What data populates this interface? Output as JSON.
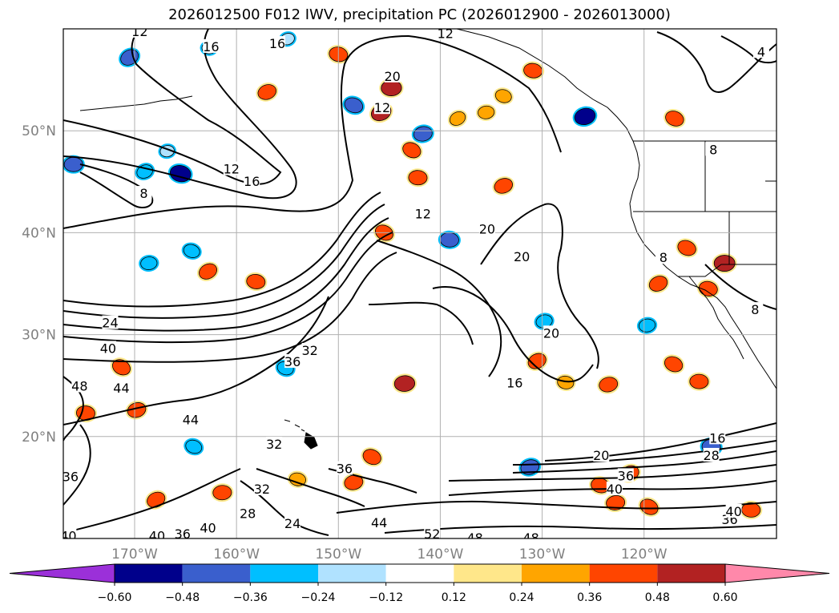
{
  "chart_data": {
    "type": "heatmap",
    "title": "2026012500 F012 IWV, precipitation PC (2026012900 - 2026013000)",
    "map": {
      "lon_range": [
        -177,
        -107
      ],
      "lat_range": [
        10,
        60
      ],
      "lon_ticks": [
        -170,
        -160,
        -150,
        -140,
        -130,
        -120
      ],
      "lon_tick_labels": [
        "170°W",
        "160°W",
        "150°W",
        "140°W",
        "130°W",
        "120°W"
      ],
      "lat_ticks": [
        20,
        30,
        40,
        50
      ],
      "lat_tick_labels": [
        "20°N",
        "30°N",
        "40°N",
        "50°N"
      ],
      "grid": true
    },
    "colorbar": {
      "orientation": "horizontal",
      "extend": "both",
      "boundaries": [
        -0.6,
        -0.48,
        -0.36,
        -0.24,
        -0.12,
        0.12,
        0.24,
        0.36,
        0.48,
        0.6
      ],
      "tick_labels": [
        "−0.60",
        "−0.48",
        "−0.36",
        "−0.24",
        "−0.12",
        "0.12",
        "0.24",
        "0.36",
        "0.48",
        "0.60"
      ],
      "colors": [
        "#9b30d9",
        "#00008b",
        "#3a5fcd",
        "#00bfff",
        "#b0e2ff",
        "#ffffff",
        "#ffe78a",
        "#ffa500",
        "#ff4500",
        "#b22222",
        "#ff88aa"
      ]
    },
    "contour_labels": [
      {
        "text": "12",
        "lon": -169.5,
        "lat": 59.7
      },
      {
        "text": "16",
        "lon": -162.5,
        "lat": 58.2
      },
      {
        "text": "16",
        "lon": -156,
        "lat": 58.5
      },
      {
        "text": "12",
        "lon": -139.5,
        "lat": 59.5
      },
      {
        "text": "20",
        "lon": -144.7,
        "lat": 55.3
      },
      {
        "text": "12",
        "lon": -145.7,
        "lat": 52.2
      },
      {
        "text": "12",
        "lon": -160.5,
        "lat": 46.2
      },
      {
        "text": "16",
        "lon": -158.5,
        "lat": 45
      },
      {
        "text": "8",
        "lon": -169.1,
        "lat": 43.8
      },
      {
        "text": "12",
        "lon": -141.7,
        "lat": 41.8
      },
      {
        "text": "20",
        "lon": -135.4,
        "lat": 40.3
      },
      {
        "text": "20",
        "lon": -132,
        "lat": 37.6
      },
      {
        "text": "24",
        "lon": -172.4,
        "lat": 31.1
      },
      {
        "text": "40",
        "lon": -172.6,
        "lat": 28.6
      },
      {
        "text": "36",
        "lon": -154.5,
        "lat": 27.3
      },
      {
        "text": "32",
        "lon": -152.8,
        "lat": 28.4
      },
      {
        "text": "20",
        "lon": -129.1,
        "lat": 30.1
      },
      {
        "text": "16",
        "lon": -132.7,
        "lat": 25.2
      },
      {
        "text": "48",
        "lon": -175.4,
        "lat": 24.9
      },
      {
        "text": "44",
        "lon": -171.3,
        "lat": 24.7
      },
      {
        "text": "44",
        "lon": -164.5,
        "lat": 21.6
      },
      {
        "text": "32",
        "lon": -156.3,
        "lat": 19.2
      },
      {
        "text": "16",
        "lon": -112.8,
        "lat": 19.8
      },
      {
        "text": "20",
        "lon": -124.2,
        "lat": 18.1
      },
      {
        "text": "28",
        "lon": -113.4,
        "lat": 18.1
      },
      {
        "text": "36",
        "lon": -176.3,
        "lat": 16
      },
      {
        "text": "36",
        "lon": -149.4,
        "lat": 16.8
      },
      {
        "text": "36",
        "lon": -121.8,
        "lat": 16.1
      },
      {
        "text": "40",
        "lon": -122.9,
        "lat": 14.8
      },
      {
        "text": "32",
        "lon": -157.5,
        "lat": 14.8
      },
      {
        "text": "28",
        "lon": -158.9,
        "lat": 12.4
      },
      {
        "text": "24",
        "lon": -154.5,
        "lat": 11.4
      },
      {
        "text": "40",
        "lon": -162.8,
        "lat": 11
      },
      {
        "text": "44",
        "lon": -146,
        "lat": 11.5
      },
      {
        "text": "52",
        "lon": -140.8,
        "lat": 10.4
      },
      {
        "text": "40",
        "lon": -167.8,
        "lat": 10.2
      },
      {
        "text": "36",
        "lon": -165.3,
        "lat": 10.4
      },
      {
        "text": "48",
        "lon": -131.1,
        "lat": 10
      },
      {
        "text": "48",
        "lon": -136.6,
        "lat": 10
      },
      {
        "text": "40",
        "lon": -176.5,
        "lat": 10.2
      },
      {
        "text": "36",
        "lon": -111.6,
        "lat": 11.8
      },
      {
        "text": "40",
        "lon": -111.2,
        "lat": 12.6
      },
      {
        "text": "8",
        "lon": -118.1,
        "lat": 37.5
      },
      {
        "text": "8",
        "lon": -109.1,
        "lat": 32.4
      },
      {
        "text": "4",
        "lon": -108.5,
        "lat": 57.7
      },
      {
        "text": "8",
        "lon": -113.2,
        "lat": 48.1
      }
    ],
    "pc_patches": [
      {
        "lon": -170.5,
        "lat": 57.2,
        "value": -0.4
      },
      {
        "lon": -162.7,
        "lat": 58.1,
        "value": -0.2
      },
      {
        "lon": -155,
        "lat": 59.0,
        "value": -0.2
      },
      {
        "lon": -148.5,
        "lat": 52.5,
        "value": -0.4
      },
      {
        "lon": -144.8,
        "lat": 54.2,
        "value": 0.48
      },
      {
        "lon": -145.8,
        "lat": 51.8,
        "value": 0.48
      },
      {
        "lon": -150,
        "lat": 57.5,
        "value": 0.4
      },
      {
        "lon": -141.7,
        "lat": 49.7,
        "value": -0.4
      },
      {
        "lon": -142.8,
        "lat": 48.1,
        "value": 0.4
      },
      {
        "lon": -142.2,
        "lat": 45.4,
        "value": 0.4
      },
      {
        "lon": -157,
        "lat": 53.8,
        "value": 0.4
      },
      {
        "lon": -133.8,
        "lat": 53.4,
        "value": 0.3
      },
      {
        "lon": -135.5,
        "lat": 51.8,
        "value": 0.3
      },
      {
        "lon": -138.3,
        "lat": 51.2,
        "value": 0.3
      },
      {
        "lon": -130.9,
        "lat": 55.9,
        "value": 0.4
      },
      {
        "lon": -125.8,
        "lat": 51.4,
        "value": -0.5
      },
      {
        "lon": -117,
        "lat": 51.2,
        "value": 0.4
      },
      {
        "lon": -176,
        "lat": 46.7,
        "value": -0.4
      },
      {
        "lon": -169,
        "lat": 46.0,
        "value": -0.3
      },
      {
        "lon": -165.5,
        "lat": 45.8,
        "value": -0.5
      },
      {
        "lon": -166.8,
        "lat": 48.0,
        "value": -0.2
      },
      {
        "lon": -145.5,
        "lat": 40.0,
        "value": 0.4
      },
      {
        "lon": -139.1,
        "lat": 39.3,
        "value": -0.4
      },
      {
        "lon": -133.8,
        "lat": 44.6,
        "value": 0.4
      },
      {
        "lon": -164.4,
        "lat": 38.2,
        "value": -0.3
      },
      {
        "lon": -168.6,
        "lat": 37.0,
        "value": -0.3
      },
      {
        "lon": -162.8,
        "lat": 36.2,
        "value": 0.4
      },
      {
        "lon": -158.1,
        "lat": 35.2,
        "value": 0.4
      },
      {
        "lon": -129.8,
        "lat": 31.3,
        "value": -0.3
      },
      {
        "lon": -115.8,
        "lat": 38.5,
        "value": 0.4
      },
      {
        "lon": -112.1,
        "lat": 37.0,
        "value": 0.5
      },
      {
        "lon": -118.6,
        "lat": 35.0,
        "value": 0.4
      },
      {
        "lon": -113.7,
        "lat": 34.5,
        "value": 0.4
      },
      {
        "lon": -119.7,
        "lat": 30.9,
        "value": -0.3
      },
      {
        "lon": -171.3,
        "lat": 26.8,
        "value": 0.4
      },
      {
        "lon": -174.8,
        "lat": 22.3,
        "value": 0.4
      },
      {
        "lon": -169.8,
        "lat": 22.6,
        "value": 0.4
      },
      {
        "lon": -155.2,
        "lat": 26.7,
        "value": -0.3
      },
      {
        "lon": -143.5,
        "lat": 25.2,
        "value": 0.48
      },
      {
        "lon": -130.5,
        "lat": 27.4,
        "value": 0.4
      },
      {
        "lon": -127.7,
        "lat": 25.3,
        "value": 0.3
      },
      {
        "lon": -123.5,
        "lat": 25.1,
        "value": 0.4
      },
      {
        "lon": -117.1,
        "lat": 27.1,
        "value": 0.4
      },
      {
        "lon": -114.6,
        "lat": 25.4,
        "value": 0.4
      },
      {
        "lon": -121.4,
        "lat": 16.4,
        "value": 0.4
      },
      {
        "lon": -124.3,
        "lat": 15.2,
        "value": 0.4
      },
      {
        "lon": -122.8,
        "lat": 13.5,
        "value": 0.4
      },
      {
        "lon": -119.5,
        "lat": 13.1,
        "value": 0.4
      },
      {
        "lon": -113.4,
        "lat": 19.0,
        "value": -0.4
      },
      {
        "lon": -131.2,
        "lat": 17.0,
        "value": -0.4
      },
      {
        "lon": -164.2,
        "lat": 19.0,
        "value": -0.3
      },
      {
        "lon": -161.4,
        "lat": 14.5,
        "value": 0.4
      },
      {
        "lon": -167.9,
        "lat": 13.8,
        "value": 0.4
      },
      {
        "lon": -154,
        "lat": 15.8,
        "value": 0.3
      },
      {
        "lon": -148.5,
        "lat": 15.5,
        "value": 0.4
      },
      {
        "lon": -146.7,
        "lat": 18.0,
        "value": 0.4
      },
      {
        "lon": -109.5,
        "lat": 12.8,
        "value": 0.4
      }
    ]
  }
}
